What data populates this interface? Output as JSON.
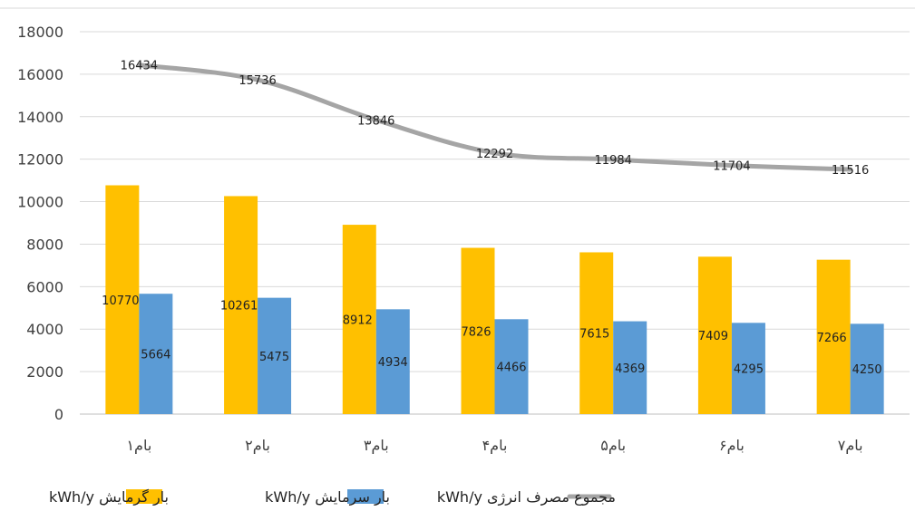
{
  "chart_data": {
    "type": "bar",
    "categories": [
      "بام۱",
      "بام۲",
      "بام۳",
      "بام۴",
      "بام۵",
      "بام۶",
      "بام۷"
    ],
    "series": [
      {
        "name": "بار گرمایش kWh/y",
        "kind": "bar",
        "color": "#FFC000",
        "values": [
          10770,
          10261,
          8912,
          7826,
          7615,
          7409,
          7266
        ]
      },
      {
        "name": "بار سرمایش kWh/y",
        "kind": "bar",
        "color": "#5B9BD5",
        "values": [
          5664,
          5475,
          4934,
          4466,
          4369,
          4295,
          4250
        ]
      },
      {
        "name": "مجموع مصرف انرژی kWh/y",
        "kind": "line",
        "color": "#A5A5A5",
        "values": [
          16434,
          15736,
          13846,
          12292,
          11984,
          11704,
          11516
        ]
      }
    ],
    "yticks": [
      "0",
      "2000",
      "4000",
      "6000",
      "8000",
      "10000",
      "12000",
      "14000",
      "16000",
      "18000"
    ],
    "ylim": [
      0,
      18000
    ],
    "grid": true,
    "legend_position": "bottom",
    "title": "",
    "xlabel": "",
    "ylabel": ""
  }
}
